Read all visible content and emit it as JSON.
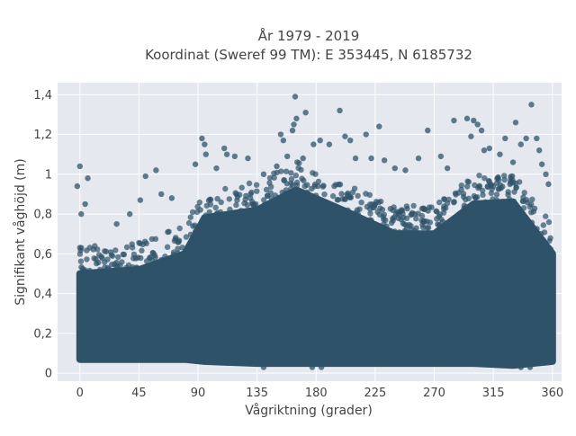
{
  "chart_data": {
    "type": "scatter",
    "title_line1": "År 1979 - 2019",
    "title_line2": "Koordinat (Sweref 99 TM): E 353445, N 6185732",
    "xlabel": "Vågriktning (grader)",
    "ylabel": "Signifikant våghöjd (m)",
    "xlim": [
      -17,
      367
    ],
    "ylim": [
      -0.04,
      1.46
    ],
    "xticks": [
      0,
      45,
      90,
      135,
      180,
      225,
      270,
      315,
      360
    ],
    "xtick_labels": [
      "0",
      "45",
      "90",
      "135",
      "180",
      "225",
      "270",
      "315",
      "360"
    ],
    "yticks": [
      0,
      0.2,
      0.4,
      0.6,
      0.8,
      1.0,
      1.2,
      1.4
    ],
    "ytick_labels": [
      "0",
      "0,2",
      "0,4",
      "0,6",
      "0,8",
      "1",
      "1,2",
      "1,4"
    ],
    "grid": true,
    "series_color": "#2e5369",
    "plot_background": "#e5e8ef",
    "dense_band": [
      {
        "x": 0,
        "y_low": 0.07,
        "y_high": 0.5
      },
      {
        "x": 45,
        "y_low": 0.07,
        "y_high": 0.52
      },
      {
        "x": 80,
        "y_low": 0.07,
        "y_high": 0.6
      },
      {
        "x": 95,
        "y_low": 0.06,
        "y_high": 0.78
      },
      {
        "x": 135,
        "y_low": 0.05,
        "y_high": 0.82
      },
      {
        "x": 165,
        "y_low": 0.05,
        "y_high": 0.92
      },
      {
        "x": 200,
        "y_low": 0.05,
        "y_high": 0.82
      },
      {
        "x": 240,
        "y_low": 0.05,
        "y_high": 0.7
      },
      {
        "x": 270,
        "y_low": 0.05,
        "y_high": 0.7
      },
      {
        "x": 300,
        "y_low": 0.05,
        "y_high": 0.85
      },
      {
        "x": 330,
        "y_low": 0.04,
        "y_high": 0.86
      },
      {
        "x": 360,
        "y_low": 0.06,
        "y_high": 0.6
      }
    ],
    "outlier_points": [
      {
        "x": 0,
        "y": 1.04
      },
      {
        "x": -2,
        "y": 0.94
      },
      {
        "x": 6,
        "y": 0.98
      },
      {
        "x": 1,
        "y": 0.8
      },
      {
        "x": 4,
        "y": 0.85
      },
      {
        "x": 28,
        "y": 0.75
      },
      {
        "x": 38,
        "y": 0.8
      },
      {
        "x": 46,
        "y": 0.87
      },
      {
        "x": 50,
        "y": 0.99
      },
      {
        "x": 58,
        "y": 1.02
      },
      {
        "x": 62,
        "y": 0.9
      },
      {
        "x": 70,
        "y": 0.88
      },
      {
        "x": 88,
        "y": 1.05
      },
      {
        "x": 93,
        "y": 1.18
      },
      {
        "x": 95,
        "y": 1.15
      },
      {
        "x": 96,
        "y": 1.1
      },
      {
        "x": 104,
        "y": 1.03
      },
      {
        "x": 110,
        "y": 1.13
      },
      {
        "x": 112,
        "y": 1.1
      },
      {
        "x": 118,
        "y": 1.09
      },
      {
        "x": 128,
        "y": 1.08
      },
      {
        "x": 140,
        "y": 1.0
      },
      {
        "x": 150,
        "y": 1.04
      },
      {
        "x": 153,
        "y": 1.2
      },
      {
        "x": 155,
        "y": 1.17
      },
      {
        "x": 158,
        "y": 1.09
      },
      {
        "x": 162,
        "y": 1.22
      },
      {
        "x": 163,
        "y": 1.25
      },
      {
        "x": 164,
        "y": 1.39
      },
      {
        "x": 165,
        "y": 1.28
      },
      {
        "x": 170,
        "y": 1.08
      },
      {
        "x": 172,
        "y": 1.31
      },
      {
        "x": 178,
        "y": 1.15
      },
      {
        "x": 183,
        "y": 1.17
      },
      {
        "x": 190,
        "y": 1.15
      },
      {
        "x": 198,
        "y": 1.32
      },
      {
        "x": 202,
        "y": 1.19
      },
      {
        "x": 206,
        "y": 1.17
      },
      {
        "x": 210,
        "y": 1.08
      },
      {
        "x": 218,
        "y": 1.2
      },
      {
        "x": 222,
        "y": 1.08
      },
      {
        "x": 228,
        "y": 1.24
      },
      {
        "x": 232,
        "y": 1.07
      },
      {
        "x": 240,
        "y": 1.03
      },
      {
        "x": 248,
        "y": 1.02
      },
      {
        "x": 258,
        "y": 1.08
      },
      {
        "x": 265,
        "y": 1.22
      },
      {
        "x": 275,
        "y": 1.09
      },
      {
        "x": 280,
        "y": 1.03
      },
      {
        "x": 285,
        "y": 1.27
      },
      {
        "x": 295,
        "y": 1.28
      },
      {
        "x": 298,
        "y": 1.19
      },
      {
        "x": 300,
        "y": 1.27
      },
      {
        "x": 303,
        "y": 1.25
      },
      {
        "x": 306,
        "y": 1.22
      },
      {
        "x": 308,
        "y": 1.12
      },
      {
        "x": 312,
        "y": 1.13
      },
      {
        "x": 320,
        "y": 1.1
      },
      {
        "x": 324,
        "y": 1.18
      },
      {
        "x": 330,
        "y": 1.06
      },
      {
        "x": 332,
        "y": 1.26
      },
      {
        "x": 336,
        "y": 1.15
      },
      {
        "x": 340,
        "y": 1.18
      },
      {
        "x": 344,
        "y": 1.35
      },
      {
        "x": 348,
        "y": 1.18
      },
      {
        "x": 350,
        "y": 1.12
      },
      {
        "x": 352,
        "y": 1.05
      },
      {
        "x": 355,
        "y": 1.0
      },
      {
        "x": 357,
        "y": 0.95
      },
      {
        "x": 140,
        "y": 0.03
      },
      {
        "x": 177,
        "y": 0.03
      },
      {
        "x": 184,
        "y": 0.03
      },
      {
        "x": 336,
        "y": 0.03
      },
      {
        "x": 343,
        "y": 0.03
      }
    ]
  }
}
